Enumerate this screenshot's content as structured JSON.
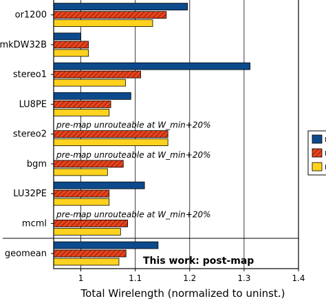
{
  "chart_data": {
    "type": "bar",
    "orientation": "horizontal",
    "categories": [
      "or1200",
      "mkDW32B",
      "stereo1",
      "LU8PE",
      "stereo2",
      "bgm",
      "LU32PE",
      "mcml",
      "geomean"
    ],
    "series": [
      {
        "color": "#0d4a8c",
        "pattern": "solid",
        "values": [
          1.196,
          1.0,
          1.311,
          1.092,
          null,
          null,
          1.117,
          null,
          1.142
        ]
      },
      {
        "color": "#e8431c",
        "pattern": "hatched",
        "values": [
          1.157,
          1.014,
          1.11,
          1.055,
          1.16,
          1.078,
          1.052,
          1.086,
          1.083
        ]
      },
      {
        "color": "#ffd21f",
        "pattern": "solid",
        "values": [
          1.132,
          1.014,
          1.082,
          1.052,
          1.16,
          1.049,
          1.052,
          1.073,
          1.07
        ]
      }
    ],
    "annotations": [
      {
        "category": "stereo2",
        "text": "pre-map unrouteable at W_min+20%"
      },
      {
        "category": "bgm",
        "text": "pre-map unrouteable at W_min+20%"
      },
      {
        "category": "mcml",
        "text": "pre-map unrouteable at W_min+20%"
      }
    ],
    "watermark": "This work: post-map",
    "xlabel": "Total Wirelength (normalized to uninst.)",
    "xlim": [
      0.95,
      1.4
    ],
    "xticks": [
      "1",
      "1.1",
      "1.2",
      "1.3",
      "1.4"
    ],
    "xtick_values": [
      1.0,
      1.1,
      1.2,
      1.3,
      1.4
    ],
    "grid": "vertical",
    "legend": {
      "placement": "right",
      "visible_labels": [
        "r",
        "r",
        "r"
      ]
    }
  }
}
